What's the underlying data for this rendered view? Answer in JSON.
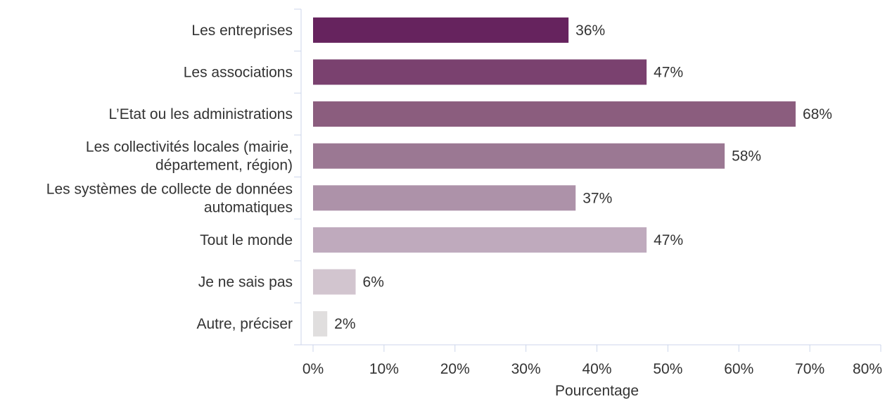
{
  "chart_data": {
    "type": "bar",
    "orientation": "horizontal",
    "categories": [
      [
        "Les entreprises"
      ],
      [
        "Les associations"
      ],
      [
        "L’Etat ou les administrations"
      ],
      [
        "Les collectivités locales (mairie,",
        "département, région)"
      ],
      [
        "Les systèmes de collecte de données",
        "automatiques"
      ],
      [
        "Tout le monde"
      ],
      [
        "Je ne sais pas"
      ],
      [
        "Autre, préciser"
      ]
    ],
    "values": [
      36,
      47,
      68,
      58,
      37,
      47,
      6,
      2
    ],
    "value_labels": [
      "36%",
      "47%",
      "68%",
      "58%",
      "37%",
      "47%",
      "6%",
      "2%"
    ],
    "bar_colors": [
      "#66235e",
      "#7a416f",
      "#8b5d7e",
      "#9b7893",
      "#ad92a9",
      "#bfaabd",
      "#d2c5cf",
      "#e0dede"
    ],
    "xlim": [
      0,
      80
    ],
    "x_ticks": [
      0,
      10,
      20,
      30,
      40,
      50,
      60,
      70,
      80
    ],
    "x_tick_labels": [
      "0%",
      "10%",
      "20%",
      "30%",
      "40%",
      "50%",
      "60%",
      "70%",
      "80%"
    ],
    "xlabel": "Pourcentage",
    "ylabel": "",
    "title": "",
    "grid": false,
    "axis_color": "#ccd6eb"
  }
}
